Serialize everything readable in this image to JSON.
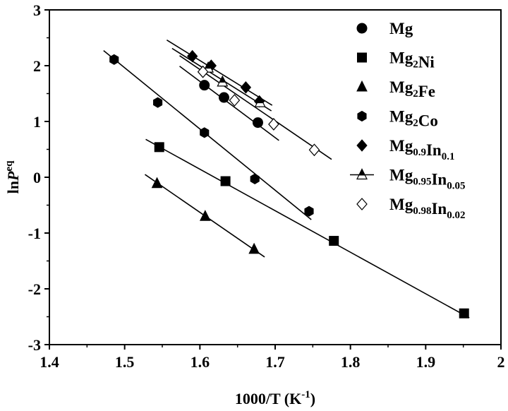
{
  "chart_data": {
    "type": "scatter",
    "xlabel": "1000/T (K",
    "xlabel_sup": "-1",
    "xlabel_end": ")",
    "ylabel": "ln",
    "ylabel_italic": "P",
    "ylabel_sup": "eq",
    "xlim": [
      1.4,
      2.0
    ],
    "ylim": [
      -3,
      3
    ],
    "xticks": [
      1.4,
      1.5,
      1.6,
      1.7,
      1.8,
      1.9,
      2.0
    ],
    "xtick_labels": [
      "1.4",
      "1.5",
      "1.6",
      "1.7",
      "1.8",
      "1.9",
      "2"
    ],
    "yticks": [
      -3,
      -2,
      -1,
      0,
      1,
      2,
      3
    ],
    "ytick_labels": [
      "-3",
      "-2",
      "-1",
      "0",
      "1",
      "2",
      "3"
    ],
    "grid": false,
    "legend_position": "right",
    "series": [
      {
        "name": "Mg",
        "label_parts": [
          [
            "Mg",
            ""
          ]
        ],
        "marker": "circle",
        "fill": "#000000",
        "points": [
          [
            1.606,
            1.65
          ],
          [
            1.632,
            1.43
          ],
          [
            1.677,
            0.98
          ]
        ],
        "fit": [
          [
            1.573,
            1.99
          ],
          [
            1.705,
            0.66
          ]
        ]
      },
      {
        "name": "Mg2Ni",
        "label_parts": [
          [
            "Mg",
            "2"
          ],
          [
            "Ni",
            ""
          ]
        ],
        "marker": "square",
        "fill": "#000000",
        "points": [
          [
            1.546,
            0.54
          ],
          [
            1.634,
            -0.07
          ],
          [
            1.778,
            -1.14
          ],
          [
            1.951,
            -2.44
          ]
        ],
        "fit": [
          [
            1.528,
            0.68
          ],
          [
            1.958,
            -2.52
          ]
        ]
      },
      {
        "name": "Mg2Fe",
        "label_parts": [
          [
            "Mg",
            "2"
          ],
          [
            "Fe",
            ""
          ]
        ],
        "marker": "triangle",
        "fill": "#000000",
        "points": [
          [
            1.543,
            -0.11
          ],
          [
            1.607,
            -0.7
          ],
          [
            1.672,
            -1.29
          ]
        ],
        "fit": [
          [
            1.527,
            0.05
          ],
          [
            1.686,
            -1.43
          ]
        ]
      },
      {
        "name": "Mg2Co",
        "label_parts": [
          [
            "Mg",
            "2"
          ],
          [
            "Co",
            ""
          ]
        ],
        "marker": "hexagon",
        "fill": "#000000",
        "points": [
          [
            1.486,
            2.11
          ],
          [
            1.544,
            1.34
          ],
          [
            1.606,
            0.8
          ],
          [
            1.673,
            -0.03
          ],
          [
            1.745,
            -0.61
          ]
        ],
        "fit": [
          [
            1.472,
            2.27
          ],
          [
            1.748,
            -0.76
          ]
        ]
      },
      {
        "name": "Mg0.9In0.1",
        "label_parts": [
          [
            "Mg",
            "0.9"
          ],
          [
            "In",
            "0.1"
          ]
        ],
        "marker": "diamond",
        "fill": "#000000",
        "points": [
          [
            1.59,
            2.17
          ],
          [
            1.615,
            2.0
          ],
          [
            1.661,
            1.61
          ],
          [
            1.679,
            1.36
          ]
        ],
        "fit": [
          [
            1.556,
            2.46
          ],
          [
            1.696,
            1.29
          ]
        ]
      },
      {
        "name": "Mg0.95In0.05",
        "label_parts": [
          [
            "Mg",
            "0.95"
          ],
          [
            "In",
            "0.05"
          ]
        ],
        "marker": "triangle-half",
        "fill": "#000000",
        "points": [
          [
            1.611,
            1.96
          ],
          [
            1.63,
            1.71
          ],
          [
            1.68,
            1.34
          ]
        ],
        "fit": [
          [
            1.563,
            2.31
          ],
          [
            1.695,
            1.19
          ]
        ]
      },
      {
        "name": "Mg0.98In0.02",
        "label_parts": [
          [
            "Mg",
            "0.98"
          ],
          [
            "In",
            "0.02"
          ]
        ],
        "marker": "diamond-open",
        "fill": "#ffffff",
        "points": [
          [
            1.604,
            1.89
          ],
          [
            1.646,
            1.38
          ],
          [
            1.698,
            0.95
          ],
          [
            1.752,
            0.49
          ]
        ],
        "fit": [
          [
            1.573,
            2.18
          ],
          [
            1.775,
            0.32
          ]
        ]
      }
    ]
  }
}
